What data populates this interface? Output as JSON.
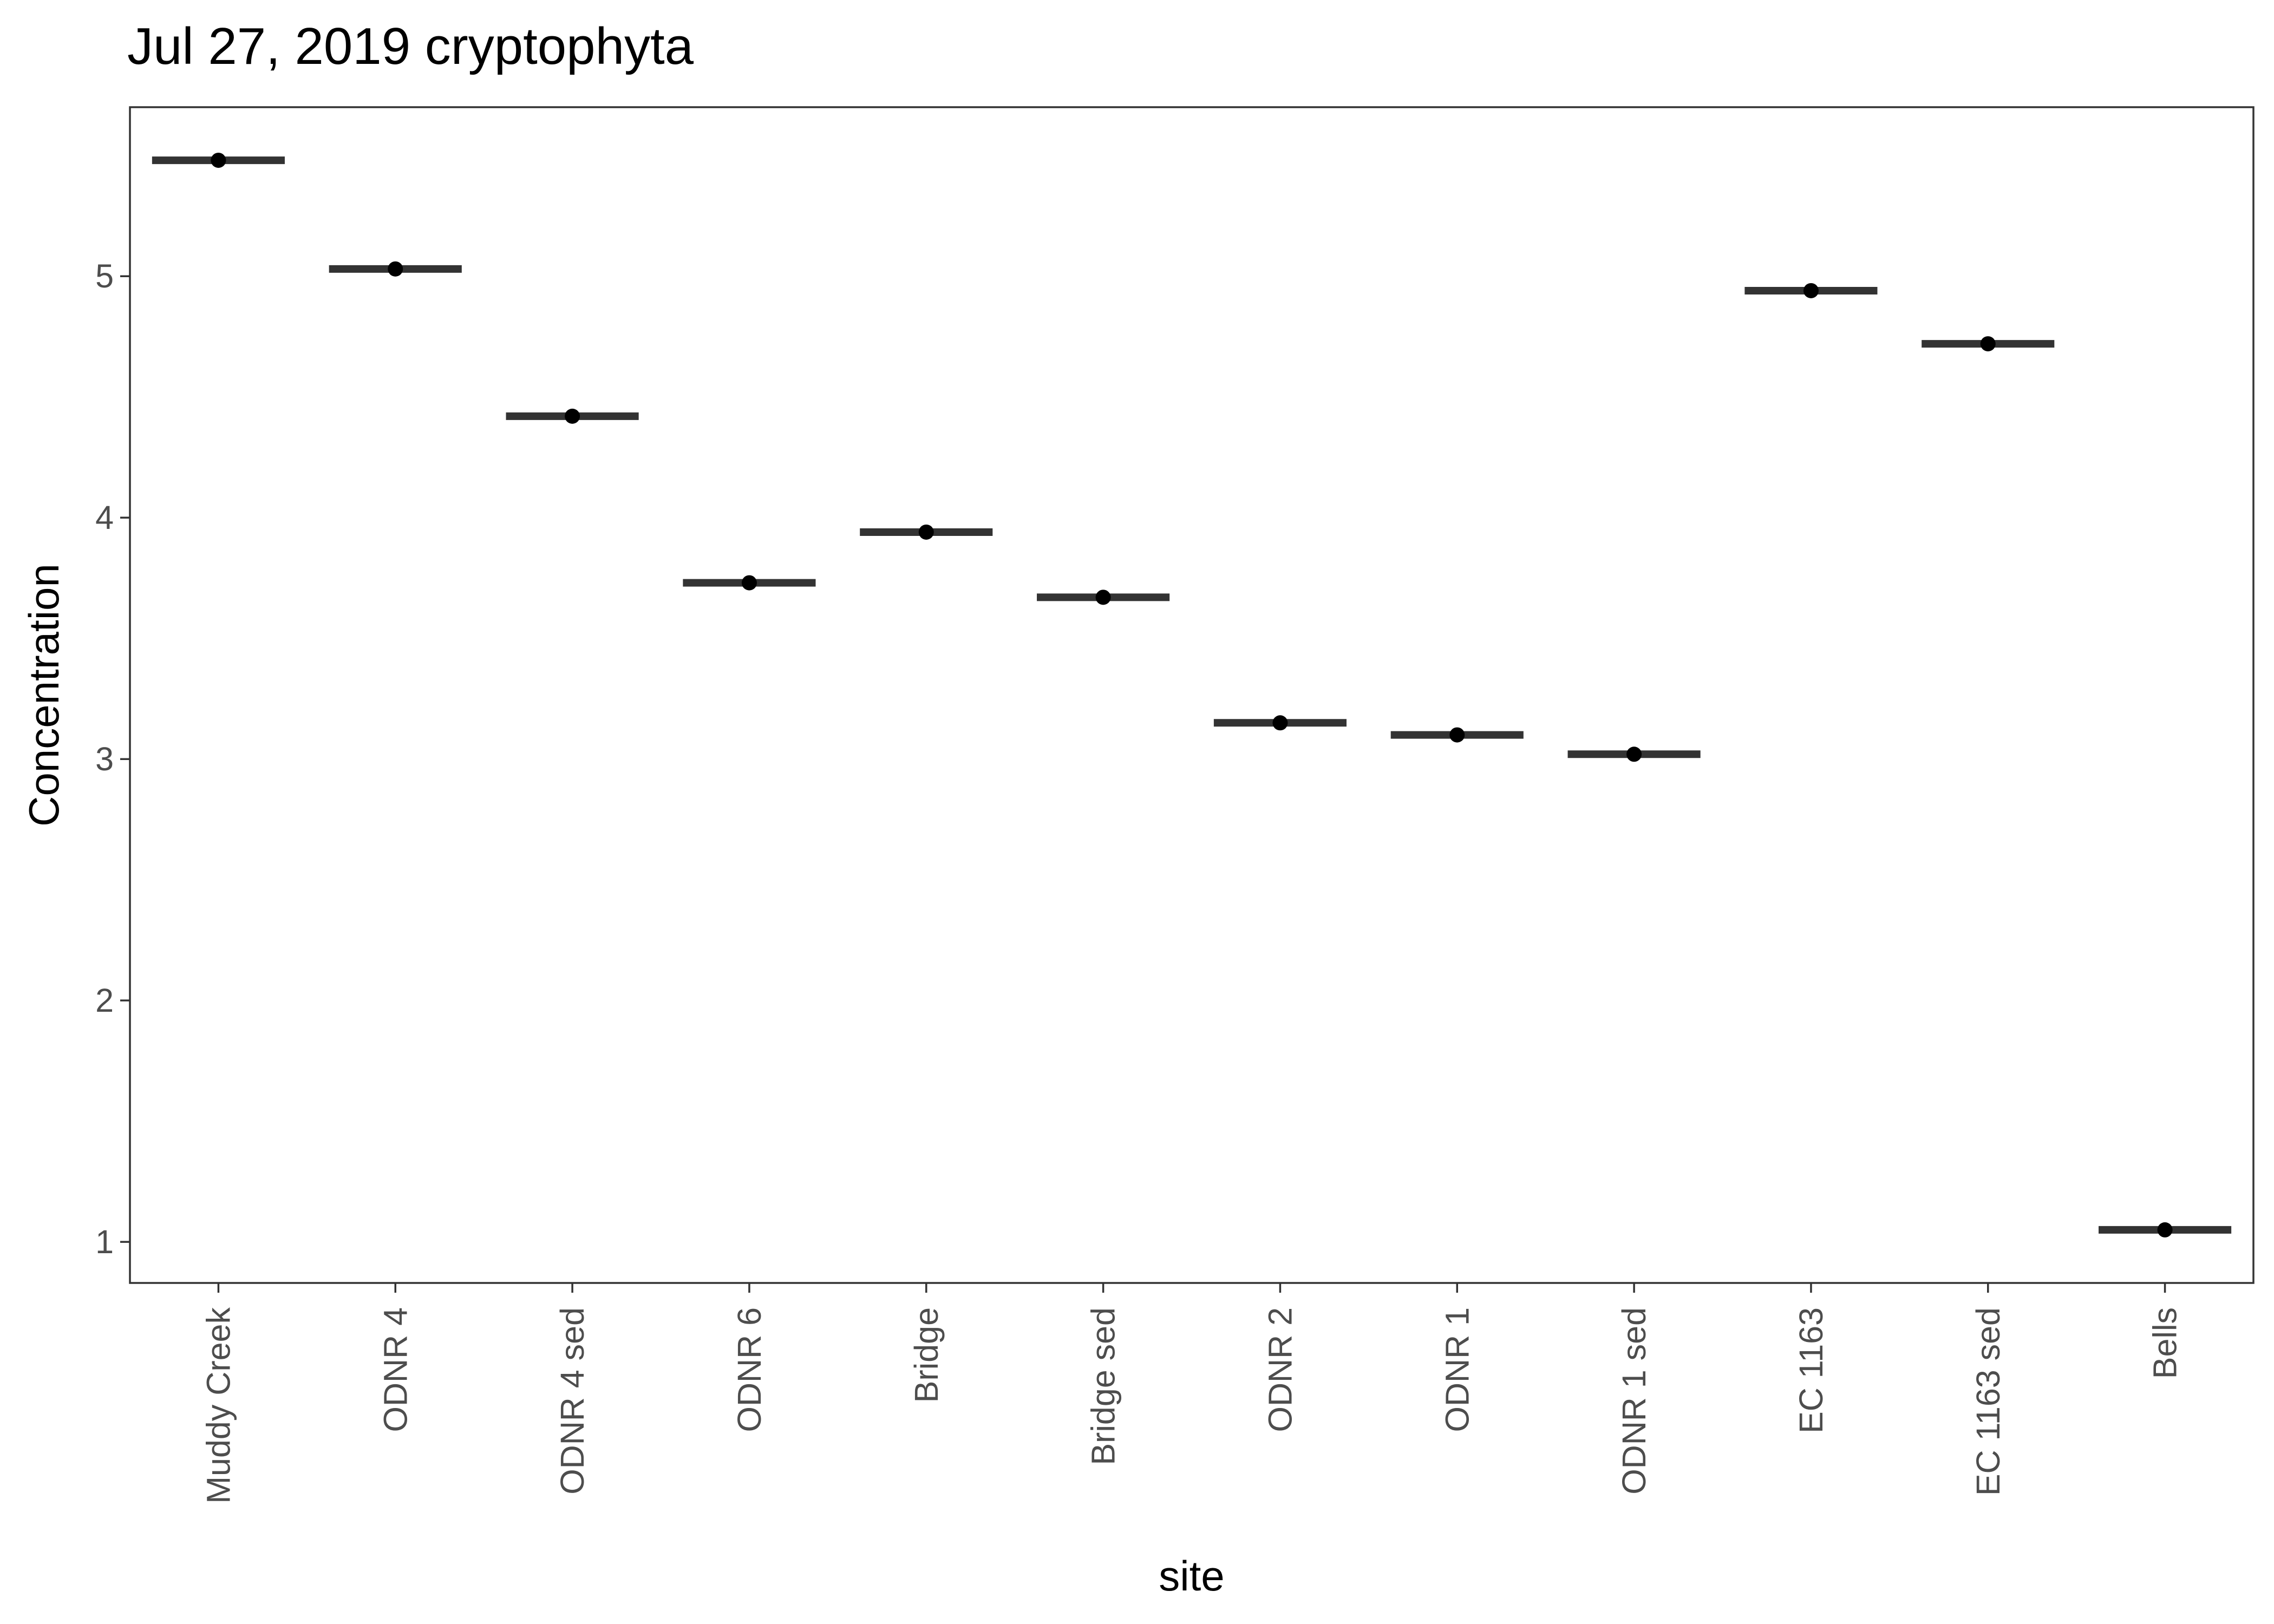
{
  "chart_data": {
    "type": "scatter",
    "title": "Jul 27, 2019 cryptophyta",
    "xlabel": "site",
    "ylabel": "Concentration",
    "categories": [
      "Muddy Creek",
      "ODNR 4",
      "ODNR 4 sed",
      "ODNR 6",
      "Bridge",
      "Bridge sed",
      "ODNR 2",
      "ODNR 1",
      "ODNR 1 sed",
      "EC 1163",
      "EC 1163 sed",
      "Bells"
    ],
    "values": [
      5.48,
      5.03,
      4.42,
      3.73,
      3.94,
      3.67,
      3.15,
      3.1,
      3.02,
      4.94,
      4.72,
      1.05
    ],
    "yticks": [
      1,
      2,
      3,
      4,
      5
    ],
    "ylim": [
      0.83,
      5.7
    ],
    "grid": false,
    "legend": "none",
    "colors": {
      "crossbar": "#333333",
      "point": "#000000",
      "panel_border": "#333333",
      "tick_text": "#4d4d4d"
    }
  }
}
